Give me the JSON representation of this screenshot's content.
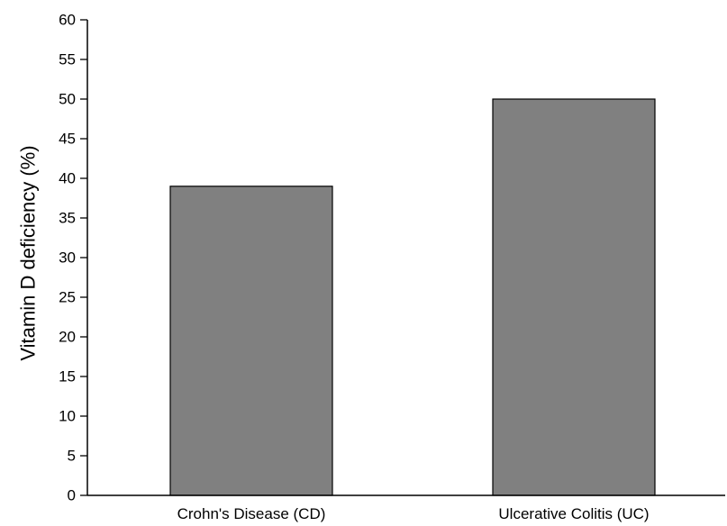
{
  "chart_data": {
    "type": "bar",
    "title": "",
    "xlabel": "",
    "ylabel": "Vitamin D deficiency (%)",
    "categories": [
      "Crohn's Disease (CD)",
      "Ulcerative Colitis (UC)"
    ],
    "values": [
      39,
      50
    ],
    "ylim": [
      0,
      60
    ],
    "yticks": [
      0,
      5,
      10,
      15,
      20,
      25,
      30,
      35,
      40,
      45,
      50,
      55,
      60
    ],
    "grid": false,
    "legend": "none",
    "colors": {
      "bar_fill": "#808080",
      "bar_stroke": "#000000",
      "axis": "#000000"
    }
  }
}
